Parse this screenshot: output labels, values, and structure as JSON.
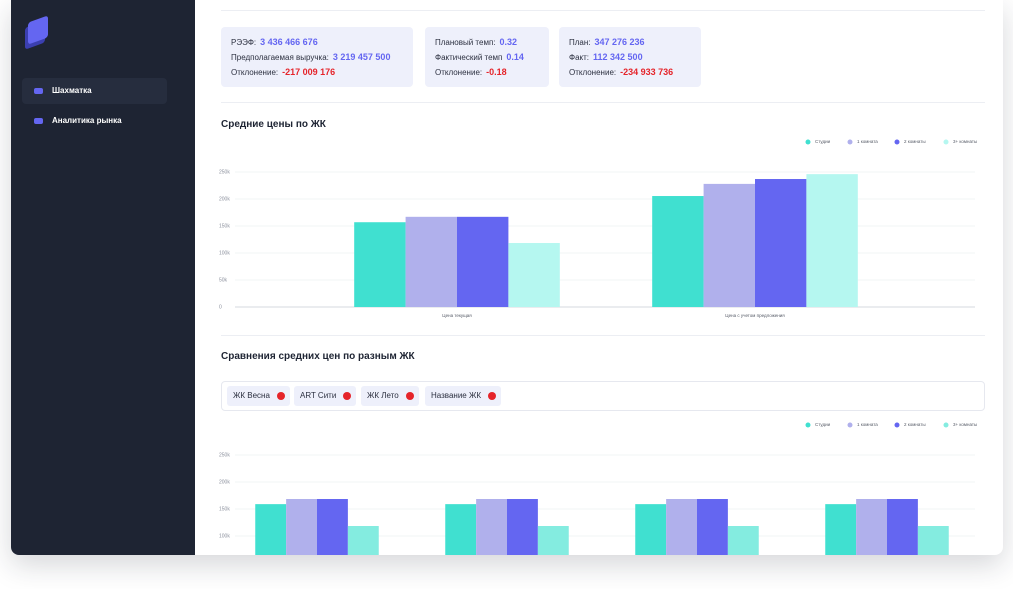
{
  "sidebar": {
    "menu": [
      "Шахматка",
      "Аналитика рынка"
    ]
  },
  "cards": [
    {
      "rows": [
        {
          "label": "РЭЭФ:",
          "value": "3 436 466 676"
        },
        {
          "label": "Предполагаемая выручка:",
          "value": "3 219 457 500"
        },
        {
          "label": "Отклонение:",
          "value": "-217 009 176"
        }
      ]
    },
    {
      "rows": [
        {
          "label": "Плановый темп:",
          "value": "0.32"
        },
        {
          "label": "Фактический темп",
          "value": "0.14"
        },
        {
          "label": "Отклонение:",
          "value": "-0.18"
        }
      ]
    },
    {
      "rows": [
        {
          "label": "План:",
          "value": "347 276 236"
        },
        {
          "label": "Факт:",
          "value": "112 342 500"
        },
        {
          "label": "Отклонение:",
          "value": "-234 933 736"
        }
      ]
    }
  ],
  "filters": [
    "ЖК Весна",
    "ART Сити",
    "ЖК Лето",
    "Название ЖК"
  ],
  "chart_data": [
    {
      "type": "bar",
      "title": "Средние цены по ЖК",
      "categories": [
        "Цена текущая",
        "Цена с учетом предложения"
      ],
      "series": [
        {
          "name": "Студии",
          "color": "#40e0d0",
          "values": [
            157000,
            205500
          ]
        },
        {
          "name": "1 комната",
          "color": "#b0b0ec",
          "values": [
            167000,
            228000
          ]
        },
        {
          "name": "2 комнаты",
          "color": "#6466f1",
          "values": [
            167000,
            237000
          ]
        },
        {
          "name": "3+ комнаты",
          "color": "#b5f7f0",
          "values": [
            118500,
            246000
          ]
        }
      ],
      "ylim": [
        0,
        250000
      ],
      "yticks": [
        0,
        {
          "value": 50000,
          "label": "50k"
        },
        {
          "value": 100000,
          "label": "100k"
        },
        {
          "value": 150000,
          "label": "150k"
        },
        {
          "value": 200000,
          "label": "200k"
        },
        {
          "value": 250000,
          "label": "250k"
        }
      ],
      "grid": true
    },
    {
      "type": "bar",
      "title": "Сравнения средних цен по разным ЖК",
      "categories": [
        null,
        null,
        null,
        null
      ],
      "series": [
        {
          "name": "Студии",
          "color": "#40e0d0",
          "values": [
            159000,
            159000,
            159000,
            159000
          ]
        },
        {
          "name": "1 комната",
          "color": "#b0b0ec",
          "values": [
            168500,
            168500,
            168500,
            168500
          ]
        },
        {
          "name": "2 комнаты",
          "color": "#6466f1",
          "values": [
            168500,
            168500,
            168500,
            168500
          ]
        },
        {
          "name": "3+ комнаты",
          "color": "#84ece0",
          "values": [
            118500,
            118500,
            118500,
            118500
          ]
        }
      ],
      "ylim": [
        0,
        250000
      ],
      "yticks": [
        {
          "value": 100000,
          "label": "100k"
        },
        {
          "value": 150000,
          "label": "150k"
        },
        {
          "value": 200000,
          "label": "200k"
        },
        {
          "value": 250000,
          "label": "250k"
        }
      ],
      "grid": true
    }
  ]
}
